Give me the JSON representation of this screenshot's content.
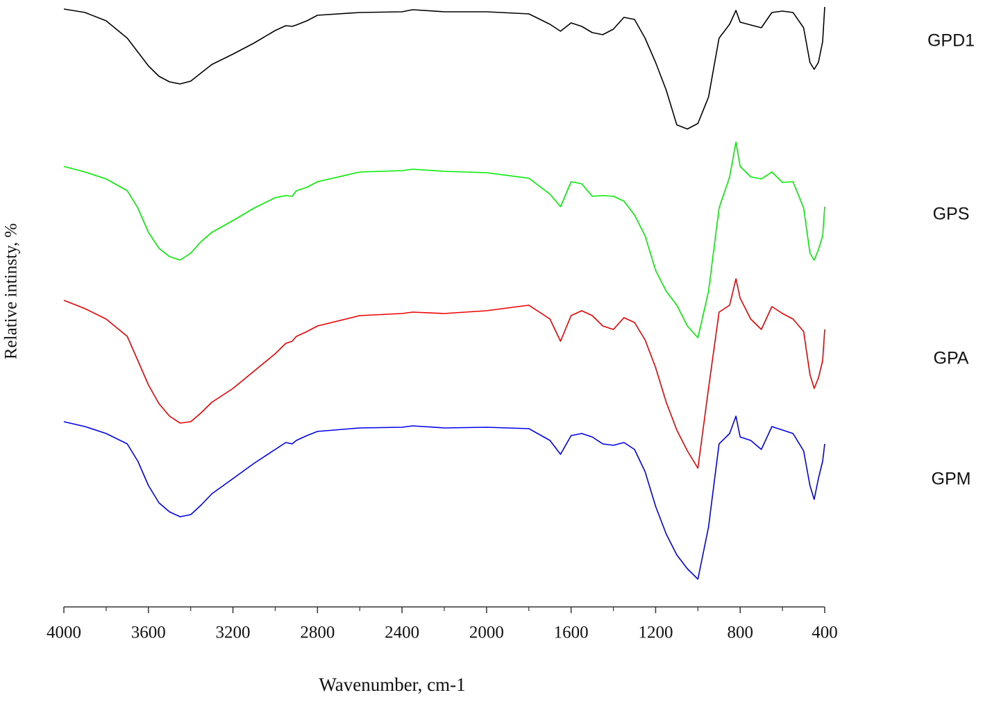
{
  "chart_data": {
    "type": "line",
    "xlabel": "Wavenumber, cm-1",
    "ylabel": "Relative intinsty, %",
    "xlim": [
      4000,
      400
    ],
    "xticks": [
      4000,
      3600,
      3200,
      2800,
      2400,
      2000,
      1600,
      1200,
      800,
      400
    ],
    "xminorticks": [
      3800,
      3400,
      3000,
      2600,
      2200,
      1800,
      1400,
      1000,
      600
    ],
    "ylim": [
      0,
      87
    ],
    "x": [
      4000,
      3900,
      3800,
      3700,
      3650,
      3600,
      3550,
      3500,
      3450,
      3400,
      3350,
      3300,
      3200,
      3100,
      3000,
      2950,
      2920,
      2900,
      2850,
      2800,
      2600,
      2400,
      2350,
      2200,
      2000,
      1800,
      1700,
      1650,
      1600,
      1550,
      1500,
      1450,
      1400,
      1350,
      1300,
      1250,
      1200,
      1150,
      1100,
      1050,
      1000,
      950,
      900,
      850,
      820,
      800,
      750,
      700,
      650,
      600,
      550,
      500,
      470,
      450,
      430,
      410,
      400
    ],
    "series": [
      {
        "name": "GPD1",
        "color": "#000000",
        "values": [
          86.2,
          85.7,
          84.5,
          82.0,
          80.0,
          78.0,
          76.5,
          75.7,
          75.4,
          75.8,
          77.0,
          78.2,
          79.7,
          81.3,
          83.1,
          83.8,
          83.7,
          83.9,
          84.5,
          85.3,
          85.7,
          85.8,
          86.1,
          85.8,
          85.8,
          85.5,
          84.0,
          83.0,
          84.2,
          83.7,
          82.8,
          82.5,
          83.3,
          85.0,
          84.7,
          82.0,
          78.5,
          74.5,
          69.5,
          68.9,
          69.7,
          73.5,
          82.0,
          84.0,
          86.0,
          84.3,
          83.9,
          83.5,
          85.7,
          85.9,
          85.7,
          83.5,
          78.5,
          77.5,
          78.5,
          81.5,
          86.5
        ]
      },
      {
        "name": "GPS",
        "color": "#00ee00",
        "values": [
          63.5,
          62.7,
          61.7,
          60.0,
          57.5,
          54.0,
          51.7,
          50.5,
          50.0,
          51.0,
          52.7,
          54.0,
          55.7,
          57.5,
          59.0,
          59.3,
          59.2,
          60.0,
          60.5,
          61.3,
          62.7,
          62.9,
          63.1,
          62.8,
          62.6,
          61.8,
          59.5,
          57.7,
          61.3,
          61.0,
          59.2,
          59.3,
          59.2,
          58.5,
          56.5,
          53.5,
          48.5,
          45.5,
          43.5,
          40.5,
          38.8,
          45.5,
          57.5,
          62.0,
          67.0,
          63.5,
          62.0,
          61.7,
          62.7,
          61.2,
          61.3,
          57.5,
          51.0,
          50.0,
          51.5,
          53.5,
          57.7
        ]
      },
      {
        "name": "GPA",
        "color": "#ee0000",
        "values": [
          44.2,
          43.0,
          41.5,
          39.0,
          35.5,
          32.0,
          29.3,
          27.5,
          26.5,
          26.7,
          28.0,
          29.5,
          31.5,
          34.0,
          36.5,
          38.0,
          38.3,
          39.0,
          39.7,
          40.5,
          42.0,
          42.3,
          42.5,
          42.3,
          42.7,
          43.5,
          41.5,
          38.3,
          42.0,
          42.7,
          42.0,
          40.5,
          40.0,
          41.7,
          41.0,
          38.5,
          34.5,
          29.5,
          25.5,
          22.5,
          20.0,
          31.5,
          42.5,
          43.5,
          47.3,
          44.5,
          41.5,
          40.0,
          43.3,
          42.3,
          41.5,
          39.7,
          33.5,
          31.5,
          33.0,
          35.5,
          40.0
        ]
      },
      {
        "name": "GPM",
        "color": "#0000ee",
        "values": [
          26.7,
          26.0,
          25.0,
          23.5,
          21.0,
          17.5,
          15.0,
          13.7,
          13.0,
          13.3,
          14.7,
          16.3,
          18.5,
          20.7,
          22.7,
          23.7,
          23.5,
          24.0,
          24.7,
          25.3,
          25.8,
          25.9,
          26.1,
          25.8,
          25.9,
          25.7,
          24.0,
          22.0,
          24.7,
          25.0,
          24.5,
          23.5,
          23.3,
          23.7,
          22.7,
          19.5,
          14.5,
          10.5,
          7.5,
          5.5,
          4.0,
          11.5,
          23.5,
          25.0,
          27.5,
          24.5,
          24.0,
          22.7,
          26.0,
          25.5,
          25.0,
          22.5,
          17.5,
          15.5,
          18.5,
          21.0,
          23.5
        ]
      }
    ]
  }
}
